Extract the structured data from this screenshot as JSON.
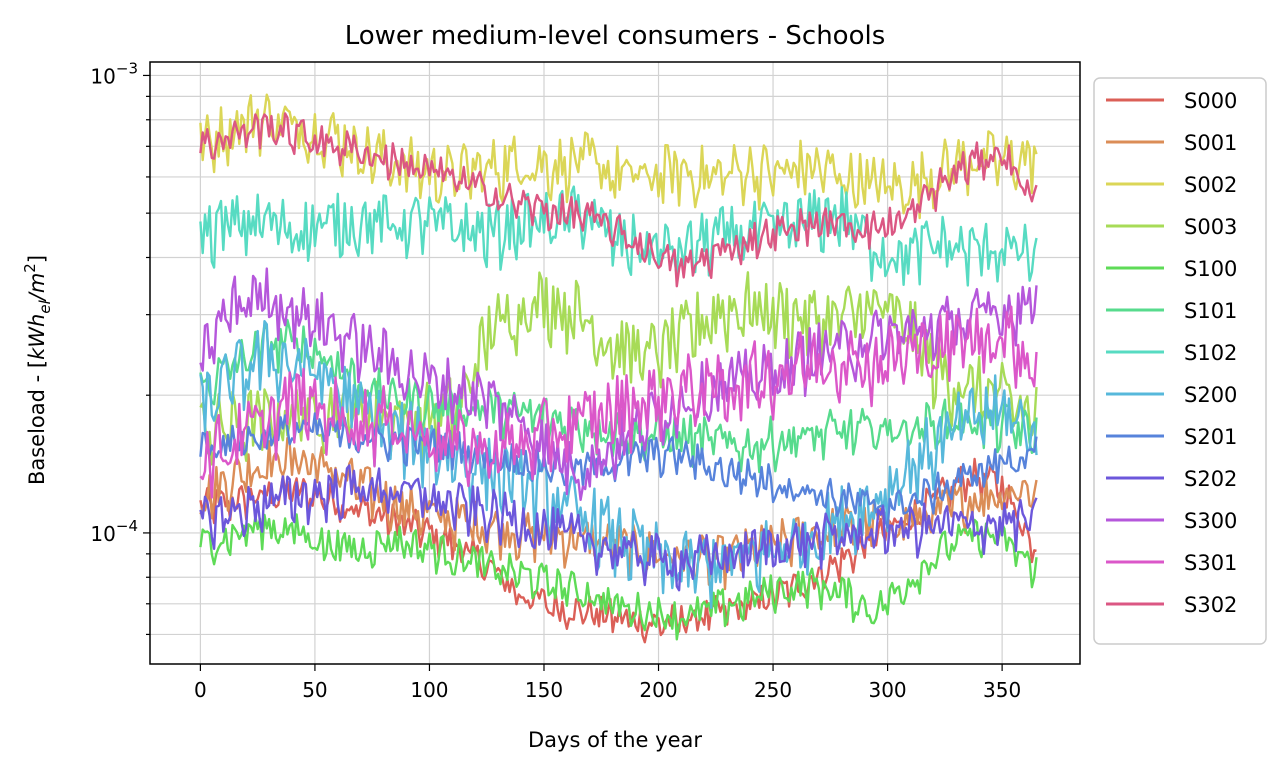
{
  "chart_data": {
    "type": "line",
    "title": "Lower medium-level consumers - Schools",
    "xlabel": "Days of the year",
    "ylabel": "Baseload - [kWh_el/m²]",
    "ylabel_parts": {
      "prefix": "Baseload - [",
      "var": "kWh",
      "sub": "el",
      "slash": "/",
      "unit": "m",
      "sup": "2",
      "suffix": "]"
    },
    "xlim": [
      -22,
      384
    ],
    "ylim": [
      5.17e-05,
      0.00107
    ],
    "yscale": "log",
    "xticks": [
      0,
      50,
      100,
      150,
      200,
      250,
      300,
      350
    ],
    "yticks": [
      {
        "value": 0.0001,
        "base": "10",
        "exponent": "−4"
      },
      {
        "value": 0.001,
        "base": "10",
        "exponent": "−3"
      }
    ],
    "grid": true,
    "legend_position": "outside-right",
    "x": [
      0,
      14,
      28,
      42,
      56,
      70,
      84,
      98,
      112,
      126,
      140,
      154,
      168,
      182,
      196,
      210,
      224,
      238,
      252,
      266,
      280,
      294,
      308,
      322,
      336,
      350,
      364
    ],
    "series": [
      {
        "name": "S000",
        "color": "#db5f57",
        "values": [
          0.000115,
          0.000118,
          0.000122,
          0.000125,
          0.00012,
          0.000114,
          0.000108,
          0.000102,
          9.5e-05,
          8.5e-05,
          7.4e-05,
          7e-05,
          6.8e-05,
          6.6e-05,
          6.4e-05,
          6.5e-05,
          6.7e-05,
          7e-05,
          7.4e-05,
          8e-05,
          8.8e-05,
          9.8e-05,
          0.000108,
          0.00012,
          0.000135,
          0.000128,
          9.5e-05
        ]
      },
      {
        "name": "S001",
        "color": "#db8d57",
        "values": [
          0.00012,
          0.000135,
          0.000145,
          0.000148,
          0.00014,
          0.000128,
          0.000118,
          0.000112,
          0.000108,
          0.000105,
          0.000102,
          0.0001,
          9.8e-05,
          9.5e-05,
          9.2e-05,
          9e-05,
          8.8e-05,
          9.2e-05,
          9.6e-05,
          0.0001,
          0.000104,
          0.000106,
          0.000108,
          0.000112,
          0.00012,
          0.000125,
          0.000128
        ]
      },
      {
        "name": "S002",
        "color": "#dbd657",
        "values": [
          0.00071,
          0.00079,
          0.00083,
          0.00079,
          0.00076,
          0.0007,
          0.00066,
          0.00063,
          0.00062,
          0.00064,
          0.00066,
          0.00065,
          0.00066,
          0.00062,
          0.00061,
          0.00063,
          0.00061,
          0.00064,
          0.00062,
          0.00065,
          0.00061,
          0.00059,
          0.00058,
          0.00063,
          0.00067,
          0.00066,
          0.00068
        ]
      },
      {
        "name": "S003",
        "color": "#a7db57",
        "values": [
          0.00017,
          0.000175,
          0.00018,
          0.000185,
          0.00019,
          0.000188,
          0.000185,
          0.000182,
          0.00019,
          0.00028,
          0.00032,
          0.00033,
          0.0003,
          0.00026,
          0.00025,
          0.00027,
          0.00031,
          0.00032,
          0.00031,
          0.0003,
          0.0003,
          0.00032,
          0.00029,
          0.00023,
          0.00021,
          0.0002,
          0.000185
        ]
      },
      {
        "name": "S100",
        "color": "#5edb57",
        "values": [
          9.5e-05,
          0.0001,
          0.000105,
          0.000102,
          9.5e-05,
          9.3e-05,
          9.8e-05,
          9.4e-05,
          9e-05,
          8.5e-05,
          8.2e-05,
          7.8e-05,
          7.5e-05,
          7e-05,
          6.8e-05,
          6.6e-05,
          6.9e-05,
          7.2e-05,
          7.6e-05,
          7.8e-05,
          7.5e-05,
          6.8e-05,
          7.8e-05,
          9.2e-05,
          0.0001,
          9.8e-05,
          8.5e-05
        ]
      },
      {
        "name": "S101",
        "color": "#57db8d",
        "values": [
          0.00021,
          0.000235,
          0.00026,
          0.000265,
          0.000245,
          0.000215,
          0.0002,
          0.000195,
          0.00019,
          0.00019,
          0.000185,
          0.00018,
          0.000175,
          0.00017,
          0.000165,
          0.000165,
          0.00016,
          0.000158,
          0.000162,
          0.000165,
          0.000168,
          0.00017,
          0.000172,
          0.000175,
          0.00018,
          0.000175,
          0.000165
        ]
      },
      {
        "name": "S102",
        "color": "#57dbc2",
        "values": [
          0.00046,
          0.00048,
          0.00049,
          0.00047,
          0.00048,
          0.00049,
          0.00048,
          0.00049,
          0.00047,
          0.00046,
          0.00048,
          0.00049,
          0.00051,
          0.00044,
          0.00043,
          0.00042,
          0.00045,
          0.00046,
          0.00047,
          0.00049,
          0.00051,
          0.00043,
          0.00041,
          0.00044,
          0.00042,
          0.00043,
          0.00041
        ]
      },
      {
        "name": "S200",
        "color": "#57b8db",
        "values": [
          0.00019,
          0.00022,
          0.00025,
          0.00024,
          0.00022,
          0.00019,
          0.00017,
          0.00016,
          0.00015,
          0.00014,
          0.00013,
          0.00012,
          0.00011,
          0.0001,
          9.2e-05,
          8.5e-05,
          8.8e-05,
          9e-05,
          9.5e-05,
          0.0001,
          0.00011,
          0.00012,
          0.00014,
          0.00016,
          0.00018,
          0.00019,
          0.00017
        ]
      },
      {
        "name": "S201",
        "color": "#5783db",
        "values": [
          0.000155,
          0.00016,
          0.000165,
          0.00017,
          0.000168,
          0.000165,
          0.00016,
          0.000158,
          0.000155,
          0.00015,
          0.000145,
          0.000142,
          0.00014,
          0.000145,
          0.00015,
          0.00015,
          0.00014,
          0.000135,
          0.00013,
          0.000125,
          0.00012,
          0.000115,
          0.000118,
          0.000125,
          0.000135,
          0.000145,
          0.00015
        ]
      },
      {
        "name": "S202",
        "color": "#6c57db",
        "values": [
          0.000108,
          0.000112,
          0.000118,
          0.000122,
          0.000125,
          0.000128,
          0.000126,
          0.000122,
          0.000116,
          0.000112,
          0.000108,
          0.000102,
          9.8e-05,
          9.3e-05,
          9e-05,
          8.8e-05,
          9e-05,
          9.2e-05,
          9.5e-05,
          9.8e-05,
          0.0001,
          0.000102,
          0.000104,
          0.000105,
          0.000106,
          0.000107,
          0.000108
        ]
      },
      {
        "name": "S300",
        "color": "#b557db",
        "values": [
          0.000245,
          0.00032,
          0.00034,
          0.00031,
          0.00029,
          0.00026,
          0.00024,
          0.00022,
          0.00021,
          0.0002,
          0.00018,
          0.00015,
          0.00014,
          0.00016,
          0.00018,
          0.0002,
          0.00021,
          0.00022,
          0.00023,
          0.00025,
          0.00026,
          0.00027,
          0.00028,
          0.00029,
          0.0003,
          0.00031,
          0.00033
        ]
      },
      {
        "name": "S301",
        "color": "#db57c9",
        "values": [
          0.00015,
          0.00016,
          0.00018,
          0.0002,
          0.00019,
          0.00018,
          0.00018,
          0.00017,
          0.00016,
          0.000155,
          0.00016,
          0.00017,
          0.00018,
          0.00019,
          0.0002,
          0.00021,
          0.00021,
          0.00022,
          0.00023,
          0.00024,
          0.00025,
          0.00024,
          0.00025,
          0.00026,
          0.00027,
          0.00028,
          0.00024
        ]
      },
      {
        "name": "S302",
        "color": "#db5783",
        "values": [
          0.00071,
          0.00075,
          0.00079,
          0.00075,
          0.00072,
          0.00069,
          0.00066,
          0.00063,
          0.0006,
          0.00056,
          0.00053,
          0.00051,
          0.0005,
          0.00046,
          0.00042,
          0.00038,
          0.00041,
          0.00044,
          0.00046,
          0.00048,
          0.00048,
          0.00047,
          0.00049,
          0.00058,
          0.00065,
          0.00069,
          0.00054
        ]
      }
    ]
  }
}
